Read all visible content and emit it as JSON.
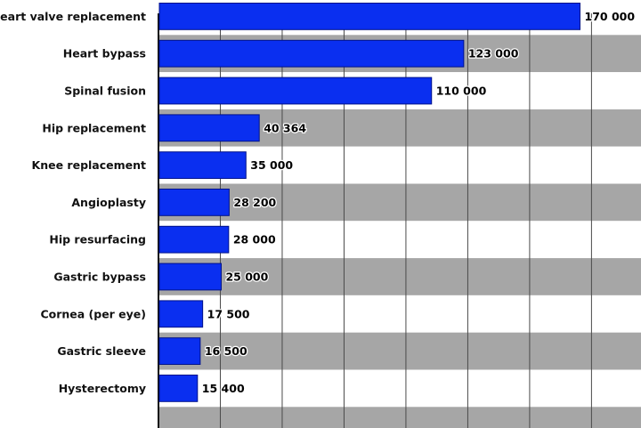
{
  "chart_data": {
    "type": "bar",
    "orientation": "horizontal",
    "categories": [
      "Heart valve replacement",
      "Heart bypass",
      "Spinal fusion",
      "Hip replacement",
      "Knee replacement",
      "Angioplasty",
      "Hip resurfacing",
      "Gastric bypass",
      "Cornea (per eye)",
      "Gastric sleeve",
      "Hysterectomy"
    ],
    "values": [
      170000,
      123000,
      110000,
      40364,
      35000,
      28200,
      28000,
      25000,
      17500,
      16500,
      15400
    ],
    "value_labels": [
      "170 000",
      "123 000",
      "110 000",
      "40 364",
      "35 000",
      "28 200",
      "28 000",
      "25 000",
      "17 500",
      "16 500",
      "15 400"
    ],
    "title": "",
    "xlabel": "",
    "ylabel": "",
    "xlim": [
      0,
      192000
    ],
    "grid": true,
    "grid_step": 25000,
    "row_band_colors": [
      "#ffffff",
      "#a6a6a6"
    ],
    "bar_color": "#0a2ff0",
    "bar_edge_color": "#00128a"
  }
}
